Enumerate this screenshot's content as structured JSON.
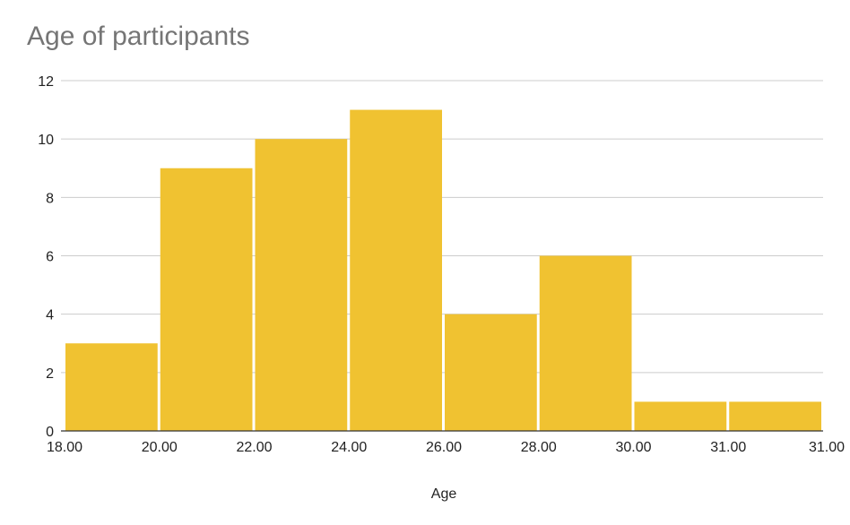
{
  "chart_data": {
    "type": "bar",
    "title": "Age of participants",
    "xlabel": "Age",
    "ylabel": "",
    "ylim": [
      0,
      12
    ],
    "yticks": [
      0,
      2,
      4,
      6,
      8,
      10,
      12
    ],
    "x_tick_labels": [
      "18.00",
      "20.00",
      "22.00",
      "24.00",
      "26.00",
      "28.00",
      "30.00",
      "31.00",
      "31.00"
    ],
    "values": [
      3,
      9,
      10,
      11,
      4,
      6,
      1,
      1
    ],
    "bar_color": "#F0C231",
    "grid": true,
    "legend": "none"
  }
}
